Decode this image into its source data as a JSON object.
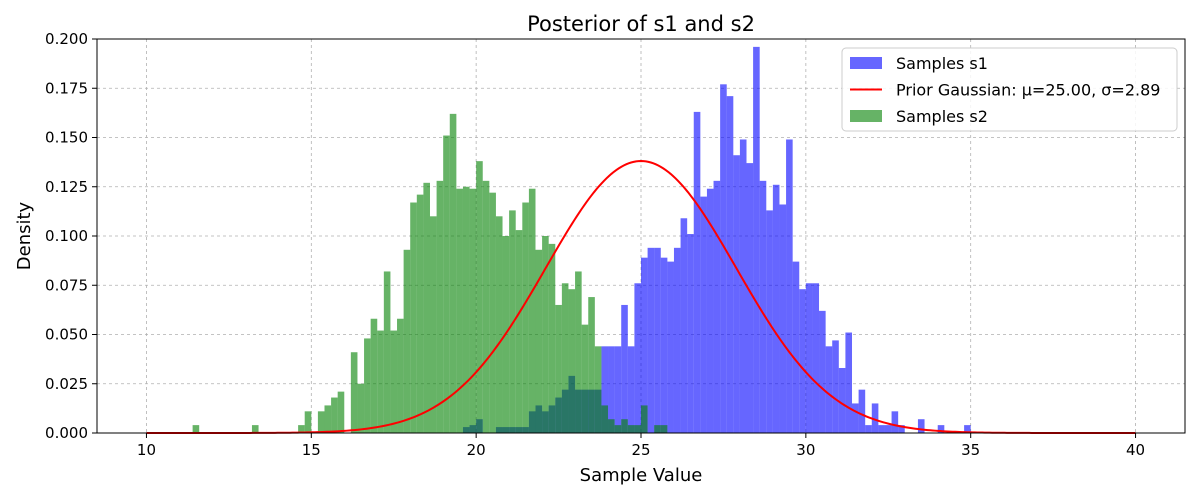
{
  "chart_data": {
    "type": "bar",
    "title": "Posterior of s1 and s2",
    "xlabel": "Sample Value",
    "ylabel": "Density",
    "xlim": [
      8.5,
      41.5
    ],
    "ylim": [
      0,
      0.2
    ],
    "xticks": [
      10,
      15,
      20,
      25,
      30,
      35,
      40
    ],
    "yticks": [
      0.0,
      0.025,
      0.05,
      0.075,
      0.1,
      0.125,
      0.15,
      0.175,
      0.2
    ],
    "grid": true,
    "legend_position": "top-right",
    "series": [
      {
        "name": "Samples s1",
        "kind": "histogram",
        "color": "#0000ff",
        "opacity": 0.6,
        "bins": [
          [
            19.6,
            19.8,
            0.003
          ],
          [
            19.8,
            20.0,
            0.004
          ],
          [
            20.0,
            20.2,
            0.007
          ],
          [
            20.2,
            20.6,
            0.0
          ],
          [
            20.6,
            20.8,
            0.003
          ],
          [
            20.8,
            21.0,
            0.003
          ],
          [
            21.0,
            21.2,
            0.003
          ],
          [
            21.2,
            21.4,
            0.003
          ],
          [
            21.4,
            21.6,
            0.003
          ],
          [
            21.6,
            21.8,
            0.011
          ],
          [
            21.8,
            22.0,
            0.014
          ],
          [
            22.0,
            22.2,
            0.011
          ],
          [
            22.2,
            22.4,
            0.014
          ],
          [
            22.4,
            22.6,
            0.018
          ],
          [
            22.6,
            22.8,
            0.022
          ],
          [
            22.8,
            23.0,
            0.029
          ],
          [
            23.0,
            23.2,
            0.022
          ],
          [
            23.2,
            23.6,
            0.022
          ],
          [
            23.6,
            23.8,
            0.022
          ],
          [
            23.8,
            24.0,
            0.044
          ],
          [
            24.0,
            24.2,
            0.044
          ],
          [
            24.2,
            24.4,
            0.044
          ],
          [
            24.4,
            24.6,
            0.065
          ],
          [
            24.6,
            24.8,
            0.044
          ],
          [
            24.8,
            25.0,
            0.076
          ],
          [
            25.0,
            25.2,
            0.089
          ],
          [
            25.2,
            25.4,
            0.094
          ],
          [
            25.4,
            25.6,
            0.094
          ],
          [
            25.6,
            25.8,
            0.089
          ],
          [
            25.8,
            26.0,
            0.087
          ],
          [
            26.0,
            26.2,
            0.094
          ],
          [
            26.2,
            26.4,
            0.109
          ],
          [
            26.4,
            26.6,
            0.101
          ],
          [
            26.6,
            26.8,
            0.163
          ],
          [
            26.8,
            27.0,
            0.12
          ],
          [
            27.0,
            27.2,
            0.124
          ],
          [
            27.2,
            27.4,
            0.128
          ],
          [
            27.4,
            27.6,
            0.177
          ],
          [
            27.6,
            27.8,
            0.171
          ],
          [
            27.8,
            28.0,
            0.141
          ],
          [
            28.0,
            28.2,
            0.149
          ],
          [
            28.2,
            28.4,
            0.137
          ],
          [
            28.4,
            28.6,
            0.196
          ],
          [
            28.6,
            28.8,
            0.128
          ],
          [
            28.8,
            29.0,
            0.113
          ],
          [
            29.0,
            29.2,
            0.126
          ],
          [
            29.2,
            29.4,
            0.116
          ],
          [
            29.4,
            29.6,
            0.149
          ],
          [
            29.6,
            29.8,
            0.087
          ],
          [
            29.8,
            30.0,
            0.073
          ],
          [
            30.0,
            30.2,
            0.076
          ],
          [
            30.2,
            30.4,
            0.076
          ],
          [
            30.4,
            30.6,
            0.062
          ],
          [
            30.6,
            30.8,
            0.044
          ],
          [
            30.8,
            31.0,
            0.047
          ],
          [
            31.0,
            31.2,
            0.033
          ],
          [
            31.2,
            31.4,
            0.051
          ],
          [
            31.4,
            31.6,
            0.015
          ],
          [
            31.6,
            31.8,
            0.022
          ],
          [
            31.8,
            32.0,
            0.004
          ],
          [
            32.0,
            32.2,
            0.015
          ],
          [
            32.2,
            32.4,
            0.004
          ],
          [
            32.4,
            32.6,
            0.004
          ],
          [
            32.6,
            32.8,
            0.011
          ],
          [
            32.8,
            33.0,
            0.004
          ],
          [
            33.0,
            33.4,
            0.0
          ],
          [
            33.4,
            33.6,
            0.007
          ],
          [
            33.6,
            34.0,
            0.0
          ],
          [
            34.0,
            34.2,
            0.004
          ],
          [
            34.2,
            34.8,
            0.0
          ],
          [
            34.8,
            35.0,
            0.004
          ]
        ]
      },
      {
        "name": "Prior Gaussian: μ=25.00, σ=2.89",
        "kind": "line",
        "color": "#ff0000",
        "mu": 25.0,
        "sigma": 2.89,
        "x_range": [
          10,
          40
        ]
      },
      {
        "name": "Samples s2",
        "kind": "histogram",
        "color": "#008000",
        "opacity": 0.6,
        "bins": [
          [
            11.4,
            11.6,
            0.004
          ],
          [
            13.2,
            13.4,
            0.004
          ],
          [
            14.6,
            14.8,
            0.004
          ],
          [
            14.8,
            15.0,
            0.011
          ],
          [
            15.0,
            15.2,
            0.0
          ],
          [
            15.2,
            15.4,
            0.011
          ],
          [
            15.4,
            15.6,
            0.014
          ],
          [
            15.6,
            15.8,
            0.018
          ],
          [
            15.8,
            16.0,
            0.021
          ],
          [
            16.0,
            16.2,
            0.0
          ],
          [
            16.2,
            16.4,
            0.041
          ],
          [
            16.4,
            16.6,
            0.025
          ],
          [
            16.6,
            16.8,
            0.048
          ],
          [
            16.8,
            17.0,
            0.058
          ],
          [
            17.0,
            17.2,
            0.052
          ],
          [
            17.2,
            17.4,
            0.082
          ],
          [
            17.4,
            17.6,
            0.052
          ],
          [
            17.6,
            17.8,
            0.058
          ],
          [
            17.8,
            18.0,
            0.093
          ],
          [
            18.0,
            18.2,
            0.117
          ],
          [
            18.2,
            18.4,
            0.121
          ],
          [
            18.4,
            18.6,
            0.127
          ],
          [
            18.6,
            18.8,
            0.11
          ],
          [
            18.8,
            19.0,
            0.128
          ],
          [
            19.0,
            19.2,
            0.151
          ],
          [
            19.2,
            19.4,
            0.162
          ],
          [
            19.4,
            19.6,
            0.124
          ],
          [
            19.6,
            19.8,
            0.125
          ],
          [
            19.8,
            20.0,
            0.124
          ],
          [
            20.0,
            20.2,
            0.138
          ],
          [
            20.2,
            20.4,
            0.128
          ],
          [
            20.4,
            20.6,
            0.122
          ],
          [
            20.6,
            20.8,
            0.11
          ],
          [
            20.8,
            21.0,
            0.1
          ],
          [
            21.0,
            21.2,
            0.113
          ],
          [
            21.2,
            21.4,
            0.103
          ],
          [
            21.4,
            21.6,
            0.117
          ],
          [
            21.6,
            21.8,
            0.124
          ],
          [
            21.8,
            22.0,
            0.093
          ],
          [
            22.0,
            22.2,
            0.1
          ],
          [
            22.2,
            22.4,
            0.096
          ],
          [
            22.4,
            22.6,
            0.065
          ],
          [
            22.6,
            22.8,
            0.076
          ],
          [
            22.8,
            23.0,
            0.073
          ],
          [
            23.0,
            23.2,
            0.082
          ],
          [
            23.2,
            23.4,
            0.055
          ],
          [
            23.4,
            23.6,
            0.069
          ],
          [
            23.6,
            23.8,
            0.044
          ],
          [
            23.8,
            24.0,
            0.014
          ],
          [
            24.0,
            24.2,
            0.007
          ],
          [
            24.2,
            24.4,
            0.004
          ],
          [
            24.4,
            24.6,
            0.007
          ],
          [
            24.6,
            24.8,
            0.004
          ],
          [
            24.8,
            25.0,
            0.004
          ],
          [
            25.0,
            25.2,
            0.014
          ],
          [
            25.2,
            25.4,
            0.0
          ],
          [
            25.4,
            25.6,
            0.004
          ],
          [
            25.6,
            25.8,
            0.004
          ]
        ]
      }
    ]
  }
}
